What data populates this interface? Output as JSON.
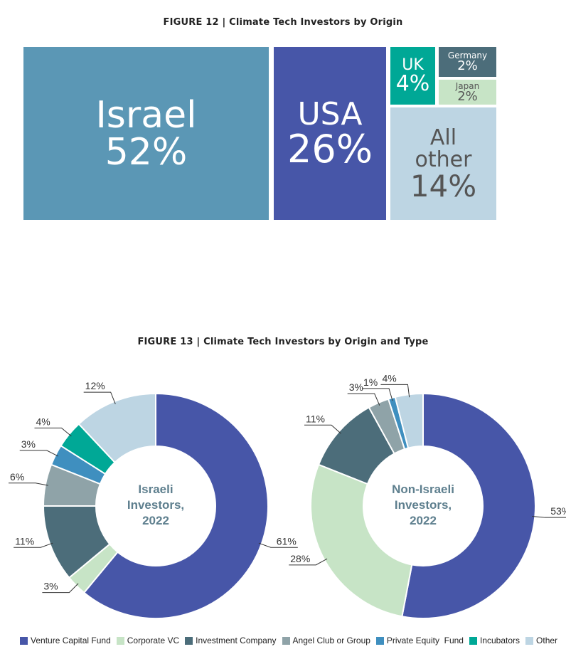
{
  "figure12": {
    "title": "FIGURE 12 | Climate Tech Investors by Origin",
    "tiles": [
      {
        "label": "Israel",
        "value": "52%",
        "color": "#5b97b5"
      },
      {
        "label": "USA",
        "value": "26%",
        "color": "#4756a8"
      },
      {
        "label": "UK",
        "value": "4%",
        "color": "#00a896"
      },
      {
        "label": "Germany",
        "value": "2%",
        "color": "#4c6d7a"
      },
      {
        "label": "Japan",
        "value": "2%",
        "color": "#c7e4c6"
      },
      {
        "label": "All other",
        "value": "14%",
        "color": "#bdd5e3"
      }
    ]
  },
  "figure13": {
    "title": "FIGURE 13 | Climate Tech Investors by Origin and Type",
    "legend": [
      "Venture Capital Fund",
      "Corporate VC",
      "Investment Company",
      "Angel Club or Group",
      "Private Equity  Fund",
      "Incubators",
      "Other"
    ]
  },
  "chart_data": [
    {
      "type": "pie",
      "title": "Israeli Investors, 2022",
      "center_label": [
        "Israeli",
        "Investors,",
        "2022"
      ],
      "categories": [
        "Venture Capital Fund",
        "Corporate VC",
        "Investment Company",
        "Angel Club or Group",
        "Private Equity  Fund",
        "Incubators",
        "Other"
      ],
      "values": [
        61,
        3,
        11,
        6,
        3,
        4,
        12
      ]
    },
    {
      "type": "pie",
      "title": "Non-Israeli Investors, 2022",
      "center_label": [
        "Non-Israeli",
        "Investors,",
        "2022"
      ],
      "categories": [
        "Venture Capital Fund",
        "Corporate VC",
        "Investment Company",
        "Angel Club or Group",
        "Private Equity  Fund",
        "Incubators",
        "Other"
      ],
      "values": [
        53,
        28,
        11,
        3,
        1,
        0,
        4
      ]
    }
  ],
  "colors": [
    "#4756a8",
    "#c7e4c6",
    "#4c6d7a",
    "#8fa3a8",
    "#3f8fbf",
    "#00a896",
    "#bdd5e3"
  ]
}
